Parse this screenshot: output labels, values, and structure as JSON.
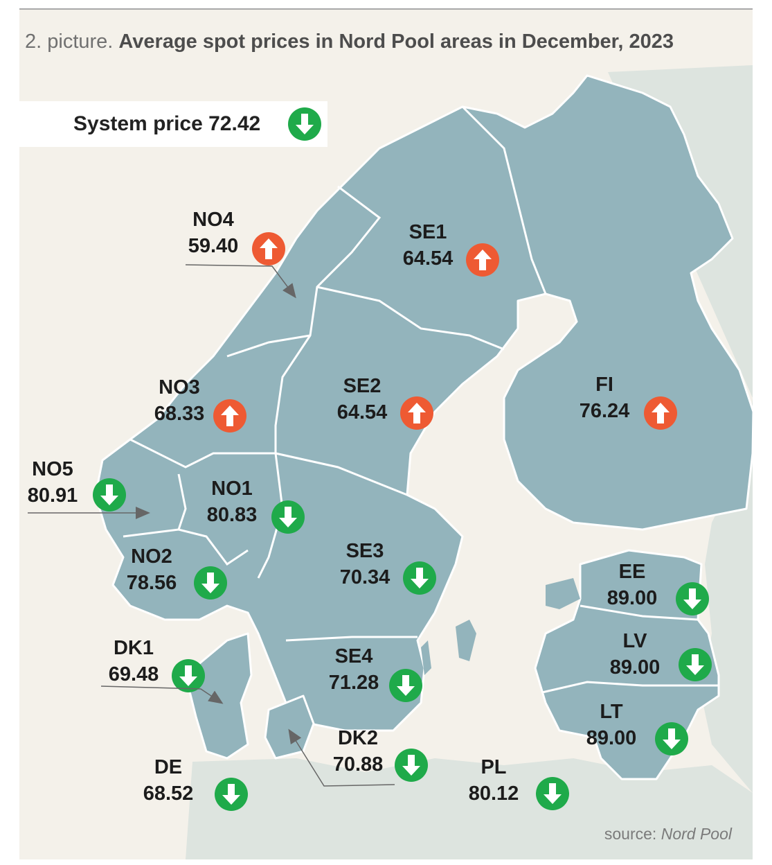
{
  "header": {
    "prefix": "2. picture.",
    "title": "Average spot prices in Nord Pool areas in December, 2023"
  },
  "system": {
    "label": "System price",
    "value": "72.42",
    "trend": "down"
  },
  "areas": {
    "no4": {
      "name": "NO4",
      "price": "59.40",
      "trend": "up"
    },
    "se1": {
      "name": "SE1",
      "price": "64.54",
      "trend": "up"
    },
    "no3": {
      "name": "NO3",
      "price": "68.33",
      "trend": "up"
    },
    "se2": {
      "name": "SE2",
      "price": "64.54",
      "trend": "up"
    },
    "fi": {
      "name": "FI",
      "price": "76.24",
      "trend": "up"
    },
    "no5": {
      "name": "NO5",
      "price": "80.91",
      "trend": "down"
    },
    "no1": {
      "name": "NO1",
      "price": "80.83",
      "trend": "down"
    },
    "se3": {
      "name": "SE3",
      "price": "70.34",
      "trend": "down"
    },
    "no2": {
      "name": "NO2",
      "price": "78.56",
      "trend": "down"
    },
    "ee": {
      "name": "EE",
      "price": "89.00",
      "trend": "down"
    },
    "dk1": {
      "name": "DK1",
      "price": "69.48",
      "trend": "down"
    },
    "se4": {
      "name": "SE4",
      "price": "71.28",
      "trend": "down"
    },
    "lv": {
      "name": "LV",
      "price": "89.00",
      "trend": "down"
    },
    "lt": {
      "name": "LT",
      "price": "89.00",
      "trend": "down"
    },
    "dk2": {
      "name": "DK2",
      "price": "70.88",
      "trend": "down"
    },
    "de": {
      "name": "DE",
      "price": "68.52",
      "trend": "down"
    },
    "pl": {
      "name": "PL",
      "price": "80.12",
      "trend": "down"
    }
  },
  "source": {
    "prefix": "source:",
    "name": "Nord Pool"
  },
  "colors": {
    "land": "#93b4bc",
    "background_land": "#dde4df",
    "sea": "#f4f1ea",
    "border": "#ffffff",
    "up": "#ee5a33",
    "down": "#1faa4a"
  }
}
